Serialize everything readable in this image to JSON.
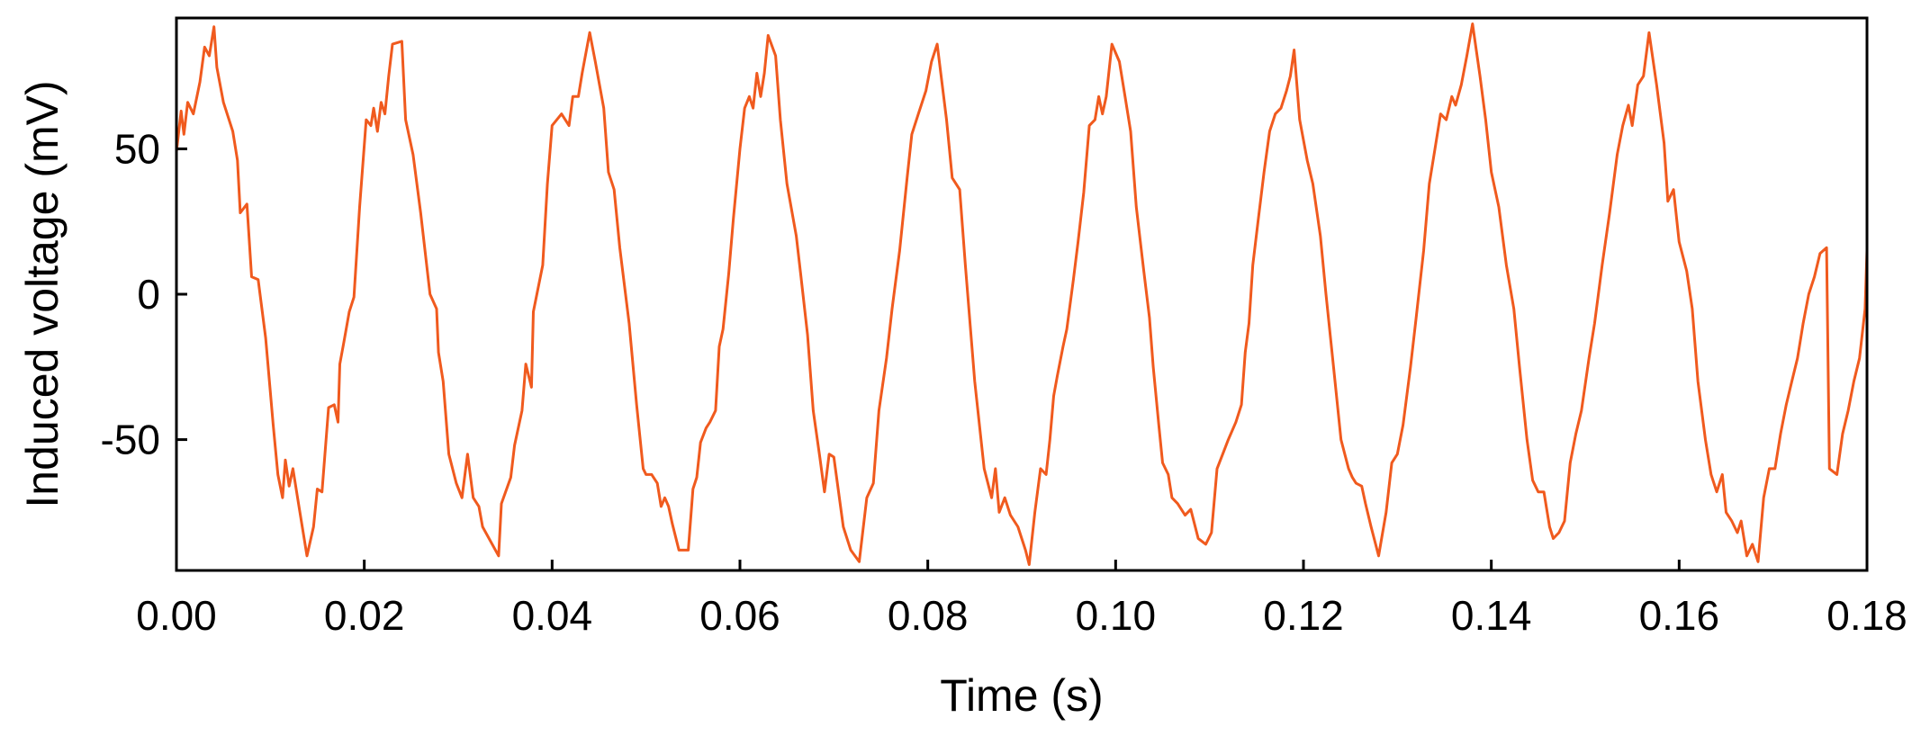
{
  "chart_data": {
    "type": "line",
    "title": "",
    "xlabel": "Time (s)",
    "ylabel": "Induced voltage (mV)",
    "xlim": [
      0.0,
      0.18
    ],
    "ylim": [
      -95,
      95
    ],
    "xticks": [
      0.0,
      0.02,
      0.04,
      0.06,
      0.08,
      0.1,
      0.12,
      0.14,
      0.16,
      0.18
    ],
    "xtick_labels": [
      "0.00",
      "0.02",
      "0.04",
      "0.06",
      "0.08",
      "0.10",
      "0.12",
      "0.14",
      "0.16",
      "0.18"
    ],
    "yticks": [
      -50,
      0,
      50
    ],
    "ytick_labels": [
      "-50",
      "0",
      "50"
    ],
    "grid": false,
    "line_color": "#f05a1e",
    "series": [
      {
        "points": [
          [
            0.0,
            49
          ],
          [
            0.0005,
            63
          ],
          [
            0.0008,
            55
          ],
          [
            0.0012,
            66
          ],
          [
            0.0018,
            62
          ],
          [
            0.0025,
            73
          ],
          [
            0.003,
            85
          ],
          [
            0.0035,
            82
          ],
          [
            0.004,
            92
          ],
          [
            0.0043,
            78
          ],
          [
            0.005,
            66
          ],
          [
            0.006,
            56
          ],
          [
            0.0065,
            46
          ],
          [
            0.0068,
            28
          ],
          [
            0.0075,
            31
          ],
          [
            0.008,
            6
          ],
          [
            0.0087,
            5
          ],
          [
            0.0095,
            -15
          ],
          [
            0.0103,
            -45
          ],
          [
            0.0108,
            -62
          ],
          [
            0.0113,
            -70
          ],
          [
            0.0116,
            -57
          ],
          [
            0.012,
            -66
          ],
          [
            0.0124,
            -60
          ],
          [
            0.013,
            -72
          ],
          [
            0.0139,
            -90
          ],
          [
            0.0146,
            -80
          ],
          [
            0.015,
            -67
          ],
          [
            0.0155,
            -68
          ],
          [
            0.0162,
            -39
          ],
          [
            0.0168,
            -38
          ],
          [
            0.0172,
            -44
          ],
          [
            0.0174,
            -24
          ],
          [
            0.0178,
            -17
          ],
          [
            0.0184,
            -6
          ],
          [
            0.0189,
            -1
          ],
          [
            0.0195,
            30
          ],
          [
            0.0202,
            60
          ],
          [
            0.0207,
            58
          ],
          [
            0.021,
            64
          ],
          [
            0.0214,
            56
          ],
          [
            0.0218,
            66
          ],
          [
            0.0222,
            62
          ],
          [
            0.0226,
            75
          ],
          [
            0.023,
            86
          ],
          [
            0.024,
            87
          ],
          [
            0.0244,
            60
          ],
          [
            0.0252,
            48
          ],
          [
            0.026,
            28
          ],
          [
            0.027,
            0
          ],
          [
            0.0277,
            -5
          ],
          [
            0.0279,
            -20
          ],
          [
            0.0284,
            -30
          ],
          [
            0.029,
            -55
          ],
          [
            0.0298,
            -65
          ],
          [
            0.0304,
            -70
          ],
          [
            0.031,
            -55
          ],
          [
            0.0316,
            -70
          ],
          [
            0.0322,
            -73
          ],
          [
            0.0326,
            -80
          ],
          [
            0.0343,
            -90
          ],
          [
            0.0346,
            -72
          ],
          [
            0.0356,
            -63
          ],
          [
            0.036,
            -52
          ],
          [
            0.0368,
            -40
          ],
          [
            0.0372,
            -24
          ],
          [
            0.0378,
            -32
          ],
          [
            0.038,
            -6
          ],
          [
            0.039,
            10
          ],
          [
            0.0395,
            38
          ],
          [
            0.04,
            58
          ],
          [
            0.041,
            62
          ],
          [
            0.0418,
            58
          ],
          [
            0.0422,
            68
          ],
          [
            0.0428,
            68
          ],
          [
            0.0432,
            76
          ],
          [
            0.044,
            90
          ],
          [
            0.0446,
            80
          ],
          [
            0.0455,
            64
          ],
          [
            0.046,
            42
          ],
          [
            0.0466,
            36
          ],
          [
            0.0472,
            16
          ],
          [
            0.0482,
            -10
          ],
          [
            0.049,
            -38
          ],
          [
            0.0497,
            -60
          ],
          [
            0.05,
            -62
          ],
          [
            0.0506,
            -62
          ],
          [
            0.0512,
            -65
          ],
          [
            0.0516,
            -73
          ],
          [
            0.052,
            -70
          ],
          [
            0.0524,
            -73
          ],
          [
            0.0528,
            -79
          ],
          [
            0.0535,
            -88
          ],
          [
            0.0545,
            -88
          ],
          [
            0.055,
            -67
          ],
          [
            0.0554,
            -63
          ],
          [
            0.0558,
            -51
          ],
          [
            0.0564,
            -46
          ],
          [
            0.0568,
            -44
          ],
          [
            0.0574,
            -40
          ],
          [
            0.0578,
            -18
          ],
          [
            0.0582,
            -12
          ],
          [
            0.0588,
            7
          ],
          [
            0.0593,
            26
          ],
          [
            0.06,
            50
          ],
          [
            0.0605,
            64
          ],
          [
            0.061,
            68
          ],
          [
            0.0614,
            64
          ],
          [
            0.0618,
            76
          ],
          [
            0.0622,
            68
          ],
          [
            0.0626,
            76
          ],
          [
            0.063,
            89
          ],
          [
            0.0638,
            82
          ],
          [
            0.0643,
            60
          ],
          [
            0.065,
            38
          ],
          [
            0.066,
            20
          ],
          [
            0.0665,
            6
          ],
          [
            0.0672,
            -14
          ],
          [
            0.0678,
            -40
          ],
          [
            0.0685,
            -56
          ],
          [
            0.069,
            -68
          ],
          [
            0.0695,
            -55
          ],
          [
            0.07,
            -56
          ],
          [
            0.071,
            -80
          ],
          [
            0.0718,
            -88
          ],
          [
            0.0727,
            -92
          ],
          [
            0.0735,
            -70
          ],
          [
            0.0742,
            -65
          ],
          [
            0.0748,
            -40
          ],
          [
            0.0756,
            -22
          ],
          [
            0.0762,
            -5
          ],
          [
            0.077,
            15
          ],
          [
            0.0778,
            40
          ],
          [
            0.0783,
            55
          ],
          [
            0.079,
            62
          ],
          [
            0.0798,
            70
          ],
          [
            0.0804,
            80
          ],
          [
            0.081,
            86
          ],
          [
            0.082,
            60
          ],
          [
            0.0826,
            40
          ],
          [
            0.0834,
            36
          ],
          [
            0.084,
            10
          ],
          [
            0.085,
            -30
          ],
          [
            0.086,
            -60
          ],
          [
            0.0868,
            -70
          ],
          [
            0.0872,
            -60
          ],
          [
            0.0876,
            -75
          ],
          [
            0.0882,
            -70
          ],
          [
            0.0888,
            -76
          ],
          [
            0.0896,
            -80
          ],
          [
            0.0904,
            -88
          ],
          [
            0.0908,
            -93
          ],
          [
            0.0914,
            -75
          ],
          [
            0.092,
            -60
          ],
          [
            0.0926,
            -62
          ],
          [
            0.093,
            -50
          ],
          [
            0.0934,
            -35
          ],
          [
            0.0938,
            -28
          ],
          [
            0.0944,
            -18
          ],
          [
            0.0948,
            -12
          ],
          [
            0.0955,
            5
          ],
          [
            0.096,
            18
          ],
          [
            0.0966,
            35
          ],
          [
            0.0972,
            58
          ],
          [
            0.0978,
            60
          ],
          [
            0.0982,
            68
          ],
          [
            0.0986,
            62
          ],
          [
            0.099,
            68
          ],
          [
            0.0996,
            86
          ],
          [
            0.1004,
            80
          ],
          [
            0.101,
            68
          ],
          [
            0.1016,
            56
          ],
          [
            0.1022,
            30
          ],
          [
            0.103,
            8
          ],
          [
            0.1036,
            -8
          ],
          [
            0.104,
            -25
          ],
          [
            0.1046,
            -45
          ],
          [
            0.105,
            -58
          ],
          [
            0.1056,
            -62
          ],
          [
            0.106,
            -70
          ],
          [
            0.1066,
            -72
          ],
          [
            0.1074,
            -76
          ],
          [
            0.108,
            -74
          ],
          [
            0.1088,
            -84
          ],
          [
            0.1096,
            -86
          ],
          [
            0.1102,
            -82
          ],
          [
            0.1108,
            -60
          ],
          [
            0.1114,
            -55
          ],
          [
            0.112,
            -50
          ],
          [
            0.1128,
            -44
          ],
          [
            0.1134,
            -38
          ],
          [
            0.1138,
            -20
          ],
          [
            0.1142,
            -10
          ],
          [
            0.1146,
            10
          ],
          [
            0.1152,
            26
          ],
          [
            0.1158,
            42
          ],
          [
            0.1164,
            56
          ],
          [
            0.117,
            62
          ],
          [
            0.1176,
            64
          ],
          [
            0.1182,
            70
          ],
          [
            0.1186,
            75
          ],
          [
            0.119,
            84
          ],
          [
            0.1196,
            60
          ],
          [
            0.1204,
            46
          ],
          [
            0.121,
            38
          ],
          [
            0.1218,
            20
          ],
          [
            0.1224,
            0
          ],
          [
            0.1232,
            -25
          ],
          [
            0.124,
            -50
          ],
          [
            0.1248,
            -60
          ],
          [
            0.1252,
            -63
          ],
          [
            0.1256,
            -65
          ],
          [
            0.1262,
            -66
          ],
          [
            0.1266,
            -72
          ],
          [
            0.1272,
            -80
          ],
          [
            0.128,
            -90
          ],
          [
            0.1288,
            -75
          ],
          [
            0.1294,
            -58
          ],
          [
            0.13,
            -55
          ],
          [
            0.1306,
            -45
          ],
          [
            0.1314,
            -25
          ],
          [
            0.132,
            -8
          ],
          [
            0.1328,
            15
          ],
          [
            0.1334,
            38
          ],
          [
            0.134,
            50
          ],
          [
            0.1346,
            62
          ],
          [
            0.1352,
            60
          ],
          [
            0.1358,
            68
          ],
          [
            0.1362,
            65
          ],
          [
            0.1368,
            72
          ],
          [
            0.1374,
            82
          ],
          [
            0.138,
            93
          ],
          [
            0.1388,
            75
          ],
          [
            0.1394,
            60
          ],
          [
            0.14,
            42
          ],
          [
            0.1408,
            30
          ],
          [
            0.1416,
            10
          ],
          [
            0.1424,
            -5
          ],
          [
            0.143,
            -25
          ],
          [
            0.1438,
            -50
          ],
          [
            0.1444,
            -64
          ],
          [
            0.145,
            -68
          ],
          [
            0.1456,
            -68
          ],
          [
            0.1462,
            -80
          ],
          [
            0.1466,
            -84
          ],
          [
            0.1472,
            -82
          ],
          [
            0.1478,
            -78
          ],
          [
            0.1484,
            -58
          ],
          [
            0.149,
            -48
          ],
          [
            0.1496,
            -40
          ],
          [
            0.1504,
            -22
          ],
          [
            0.151,
            -10
          ],
          [
            0.1518,
            10
          ],
          [
            0.1526,
            28
          ],
          [
            0.1534,
            48
          ],
          [
            0.154,
            58
          ],
          [
            0.1546,
            65
          ],
          [
            0.155,
            58
          ],
          [
            0.1556,
            72
          ],
          [
            0.1562,
            75
          ],
          [
            0.1568,
            90
          ],
          [
            0.1576,
            72
          ],
          [
            0.1584,
            52
          ],
          [
            0.1588,
            32
          ],
          [
            0.1594,
            36
          ],
          [
            0.16,
            18
          ],
          [
            0.1608,
            8
          ],
          [
            0.1614,
            -5
          ],
          [
            0.162,
            -30
          ],
          [
            0.1628,
            -50
          ],
          [
            0.1634,
            -62
          ],
          [
            0.164,
            -68
          ],
          [
            0.1646,
            -62
          ],
          [
            0.165,
            -75
          ],
          [
            0.1656,
            -78
          ],
          [
            0.1662,
            -82
          ],
          [
            0.1666,
            -78
          ],
          [
            0.1672,
            -90
          ],
          [
            0.1678,
            -86
          ],
          [
            0.1684,
            -92
          ],
          [
            0.169,
            -70
          ],
          [
            0.1696,
            -60
          ],
          [
            0.1702,
            -60
          ],
          [
            0.1708,
            -48
          ],
          [
            0.1714,
            -38
          ],
          [
            0.172,
            -30
          ],
          [
            0.1726,
            -22
          ],
          [
            0.1732,
            -10
          ],
          [
            0.1738,
            0
          ],
          [
            0.1744,
            6
          ],
          [
            0.175,
            14
          ],
          [
            0.1757,
            16
          ],
          [
            0.176,
            -60
          ],
          [
            0.1768,
            -62
          ],
          [
            0.1774,
            -48
          ],
          [
            0.178,
            -40
          ],
          [
            0.1786,
            -30
          ],
          [
            0.1792,
            -22
          ],
          [
            0.1798,
            -5
          ],
          [
            0.18,
            15
          ]
        ]
      }
    ]
  }
}
